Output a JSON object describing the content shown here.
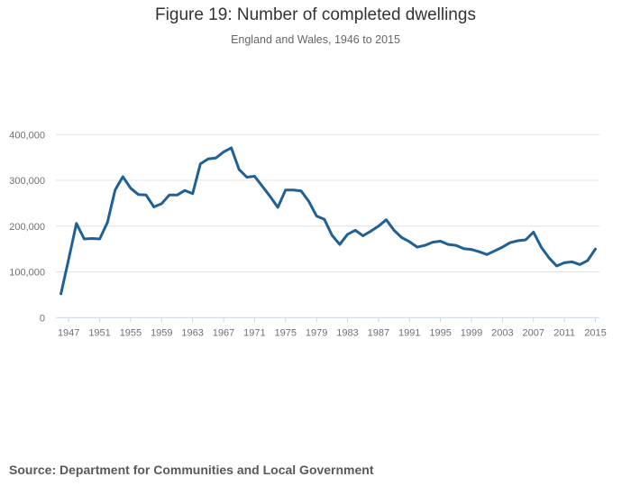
{
  "chart_data": {
    "type": "line",
    "title": "Figure 19: Number of completed dwellings",
    "subtitle": "England and Wales, 1946 to 2015",
    "xlabel": "",
    "ylabel": "",
    "xlim": [
      1946,
      2015
    ],
    "ylim": [
      0,
      400000
    ],
    "grid": true,
    "line_color": "#206095",
    "y_ticks": [
      0,
      100000,
      200000,
      300000,
      400000
    ],
    "y_tick_labels": [
      "0",
      "100,000",
      "200,000",
      "300,000",
      "400,000"
    ],
    "x_ticks": [
      1947,
      1951,
      1955,
      1959,
      1963,
      1967,
      1971,
      1975,
      1979,
      1983,
      1987,
      1991,
      1995,
      1999,
      2003,
      2007,
      2011,
      2015
    ],
    "x": [
      1946,
      1947,
      1948,
      1949,
      1950,
      1951,
      1952,
      1953,
      1954,
      1955,
      1956,
      1957,
      1958,
      1959,
      1960,
      1961,
      1962,
      1963,
      1964,
      1965,
      1966,
      1967,
      1968,
      1969,
      1970,
      1971,
      1972,
      1973,
      1974,
      1975,
      1976,
      1977,
      1978,
      1979,
      1980,
      1981,
      1982,
      1983,
      1984,
      1985,
      1986,
      1987,
      1988,
      1989,
      1990,
      1991,
      1992,
      1993,
      1994,
      1995,
      1996,
      1997,
      1998,
      1999,
      2000,
      2001,
      2002,
      2003,
      2004,
      2005,
      2006,
      2007,
      2008,
      2009,
      2010,
      2011,
      2012,
      2013,
      2014,
      2015
    ],
    "values": [
      52000,
      128000,
      206000,
      172000,
      173000,
      172000,
      208000,
      279000,
      308000,
      283000,
      269000,
      268000,
      242000,
      249000,
      268000,
      268000,
      278000,
      271000,
      336000,
      347000,
      349000,
      362000,
      371000,
      324000,
      307000,
      309000,
      287000,
      265000,
      241000,
      279000,
      279000,
      277000,
      254000,
      222000,
      215000,
      180000,
      160000,
      182000,
      191000,
      179000,
      189000,
      200000,
      214000,
      191000,
      175000,
      166000,
      154000,
      158000,
      165000,
      167000,
      160000,
      158000,
      151000,
      149000,
      144000,
      138000,
      146000,
      154000,
      164000,
      168000,
      170000,
      187000,
      154000,
      131000,
      113000,
      120000,
      122000,
      116000,
      125000,
      150000
    ]
  },
  "source": "Source: Department for Communities and Local Government"
}
